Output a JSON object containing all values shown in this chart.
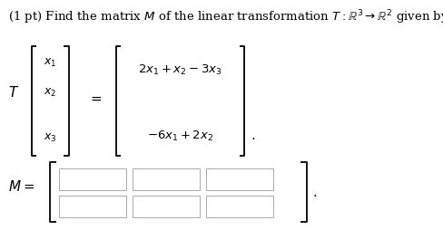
{
  "title": "(1 pt) Find the matrix $M$ of the linear transformation $T: \\mathbb{R}^3 \\to \\mathbb{R}^2$ given by",
  "T_label": "$T$",
  "x1": "$x_1$",
  "x2": "$x_2$",
  "x3": "$x_3$",
  "eq": "$=$",
  "out1": "$2x_1 + x_2 - 3x_3$",
  "out2": "$-6x_1 + 2x_2$",
  "M_label": "$M =$",
  "period": ".",
  "bg_color": "#ffffff",
  "text_color": "#000000",
  "box_edge_color": "#aaaaaa",
  "box_fill_color": "#ffffff",
  "bracket_color": "#000000",
  "n_rows": 2,
  "n_cols": 3,
  "fig_w": 4.89,
  "fig_h": 2.55,
  "dpi": 100
}
